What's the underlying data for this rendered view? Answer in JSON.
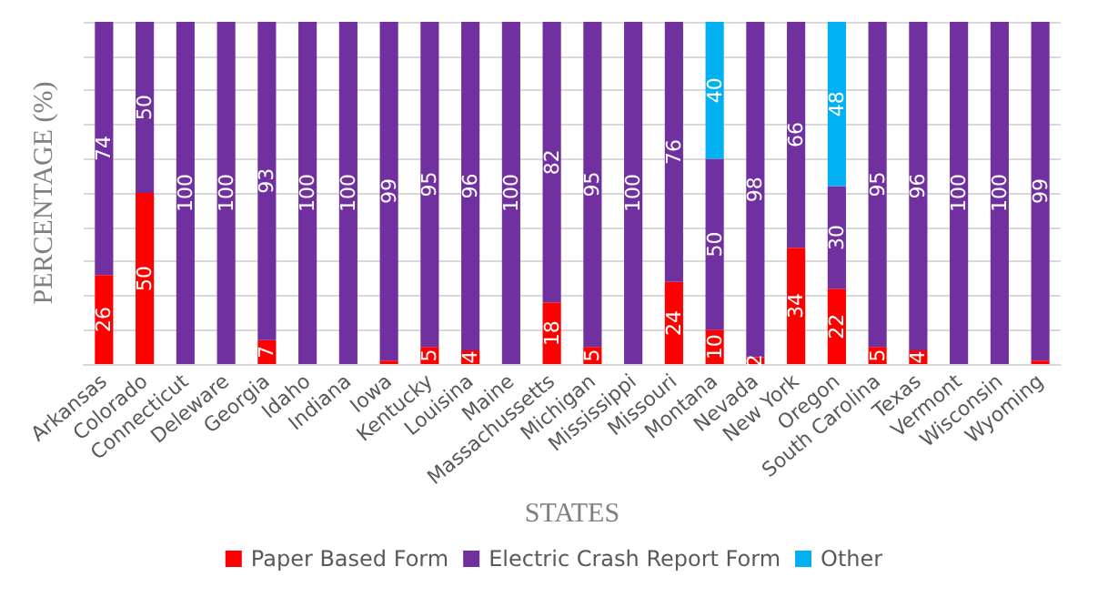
{
  "chart_data": {
    "type": "bar",
    "stacked": true,
    "xlabel": "STATES",
    "ylabel": "PERCENTAGE (%)",
    "categories": [
      "Arkansas",
      "Colorado",
      "Connecticut",
      "Deleware",
      "Georgia",
      "Idaho",
      "Indiana",
      "Iowa",
      "Kentucky",
      "Louisina",
      "Maine",
      "Massachussetts",
      "Michigan",
      "Mississippi",
      "Missouri",
      "Montana",
      "Nevada",
      "New York",
      "Oregon",
      "South Carolina",
      "Texas",
      "Vermont",
      "Wisconsin",
      "Wyoming"
    ],
    "series": [
      {
        "name": "Paper Based Form",
        "color": "#ff0000",
        "values": [
          26,
          50,
          0,
          0,
          7,
          0,
          0,
          1,
          5,
          4,
          0,
          18,
          5,
          0,
          24,
          10,
          2,
          34,
          22,
          5,
          4,
          0,
          0,
          1
        ],
        "value_labels": [
          "26",
          "50",
          null,
          null,
          "7",
          null,
          null,
          null,
          "5",
          "4",
          null,
          "18",
          "5",
          null,
          "24",
          "10",
          "2",
          "34",
          "22",
          "5",
          "4",
          null,
          null,
          null
        ]
      },
      {
        "name": "Electric Crash Report Form",
        "color": "#7030a0",
        "values": [
          74,
          50,
          100,
          100,
          93,
          100,
          100,
          99,
          95,
          96,
          100,
          82,
          95,
          100,
          76,
          50,
          98,
          66,
          30,
          95,
          96,
          100,
          100,
          99
        ],
        "value_labels": [
          "74",
          "50",
          "100",
          "100",
          "93",
          "100",
          "100",
          "99",
          "95",
          "96",
          "100",
          "82",
          "95",
          "100",
          "76",
          "50",
          "98",
          "66",
          "30",
          "95",
          "96",
          "100",
          "100",
          "99"
        ]
      },
      {
        "name": "Other",
        "color": "#00b0f0",
        "values": [
          0,
          0,
          0,
          0,
          0,
          0,
          0,
          0,
          0,
          0,
          0,
          0,
          0,
          0,
          0,
          40,
          0,
          0,
          48,
          0,
          0,
          0,
          0,
          0
        ],
        "value_labels": [
          null,
          null,
          null,
          null,
          null,
          null,
          null,
          null,
          null,
          null,
          null,
          null,
          null,
          null,
          null,
          "40",
          null,
          null,
          "48",
          null,
          null,
          null,
          null,
          null
        ]
      }
    ],
    "ylim": [
      0,
      100
    ],
    "yticks": [
      {
        "value": 0,
        "label": null
      },
      {
        "value": 10,
        "label": null
      },
      {
        "value": 20,
        "label": null
      },
      {
        "value": 30,
        "label": null
      },
      {
        "value": 40,
        "label": null
      },
      {
        "value": 50,
        "label": null
      },
      {
        "value": 60,
        "label": null
      },
      {
        "value": 70,
        "label": null
      },
      {
        "value": 80,
        "label": null
      },
      {
        "value": 90,
        "label": null
      },
      {
        "value": 100,
        "label": null
      }
    ],
    "tick_labels": "x",
    "grid": "y",
    "legend": "bottom"
  }
}
